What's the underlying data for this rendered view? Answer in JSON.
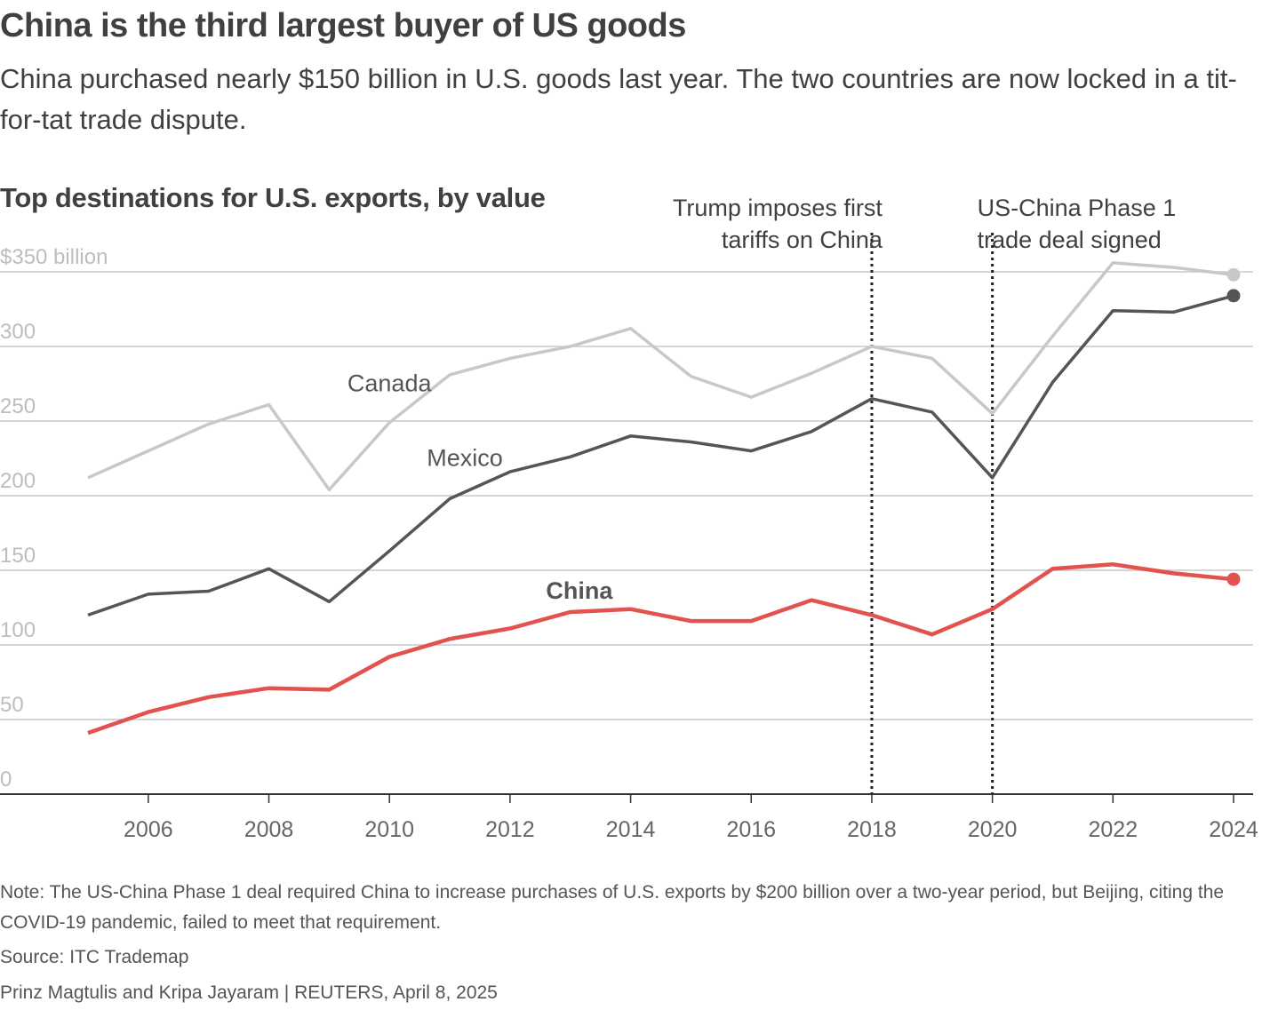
{
  "headline": "China is the third largest buyer of US goods",
  "subtitle": "China purchased nearly $150 billion in U.S. goods last year. The two countries are now locked in a tit-for-tat trade dispute.",
  "chart_data": {
    "type": "line",
    "title": "Top destinations for U.S. exports, by value",
    "y_unit_label": "$350 billion",
    "ylim": [
      0,
      350
    ],
    "y_ticks": [
      0,
      50,
      100,
      150,
      200,
      250,
      300,
      350
    ],
    "y_tick_labels": [
      "0",
      "50",
      "100",
      "150",
      "200",
      "250",
      "300",
      "$350 billion"
    ],
    "x_ticks": [
      2006,
      2008,
      2010,
      2012,
      2014,
      2016,
      2018,
      2020,
      2022,
      2024
    ],
    "x_tick_labels": [
      "2006",
      "2008",
      "2010",
      "2012",
      "2014",
      "2016",
      "2018",
      "2020",
      "2022",
      "2024"
    ],
    "grid": true,
    "x": [
      2005,
      2006,
      2007,
      2008,
      2009,
      2010,
      2011,
      2012,
      2013,
      2014,
      2015,
      2016,
      2017,
      2018,
      2019,
      2020,
      2021,
      2022,
      2023,
      2024
    ],
    "series": [
      {
        "name": "Canada",
        "color": "#c8c8c8",
        "values": [
          212,
          230,
          248,
          261,
          204,
          249,
          281,
          292,
          300,
          312,
          280,
          266,
          282,
          300,
          292,
          255,
          307,
          356,
          353,
          348
        ]
      },
      {
        "name": "Mexico",
        "color": "#555555",
        "values": [
          120,
          134,
          136,
          151,
          129,
          163,
          198,
          216,
          226,
          240,
          236,
          230,
          243,
          265,
          256,
          212,
          276,
          324,
          323,
          334
        ]
      },
      {
        "name": "China",
        "color": "#e2524f",
        "values": [
          41,
          55,
          65,
          71,
          70,
          92,
          104,
          111,
          122,
          124,
          116,
          116,
          130,
          120,
          107,
          124,
          151,
          154,
          148,
          144
        ]
      }
    ],
    "annotations": [
      {
        "x": 2018,
        "text_lines": [
          "Trump imposes first",
          "tariffs on China"
        ],
        "align": "right"
      },
      {
        "x": 2020,
        "text_lines": [
          "US-China Phase 1",
          "trade deal signed"
        ],
        "align": "left"
      }
    ]
  },
  "footer": {
    "note": "Note: The US-China Phase 1 deal required China to increase purchases of U.S. exports by $200 billion over a two-year period, but Beijing, citing the COVID-19 pandemic, failed to meet that requirement.",
    "source": "Source: ITC Trademap",
    "credit": "Prinz Magtulis and Kripa Jayaram | REUTERS, April 8, 2025"
  }
}
